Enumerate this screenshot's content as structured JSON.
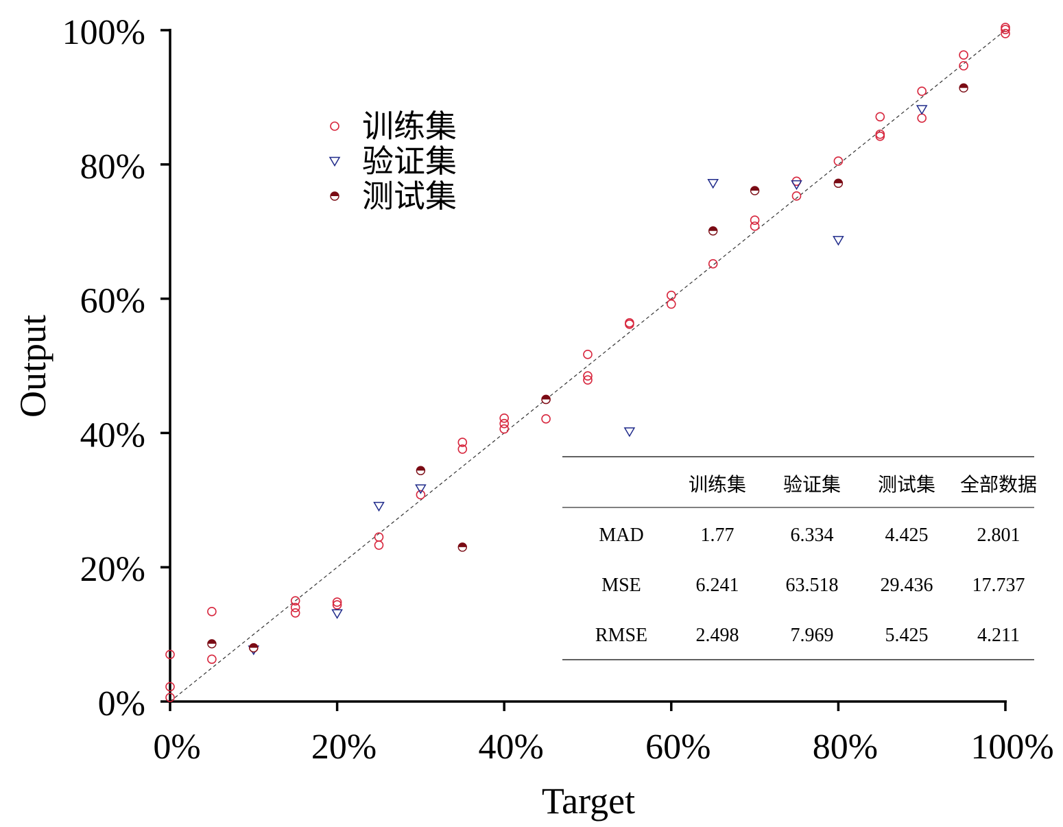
{
  "chart_data": {
    "type": "scatter",
    "xlabel": "Target",
    "ylabel": "Output",
    "xlim": [
      0,
      100
    ],
    "ylim": [
      0,
      100
    ],
    "x_ticks": [
      "0%",
      "20%",
      "40%",
      "60%",
      "80%",
      "100%"
    ],
    "y_ticks": [
      "0%",
      "20%",
      "40%",
      "60%",
      "80%",
      "100%"
    ],
    "tick_values": [
      0,
      20,
      40,
      60,
      80,
      100
    ],
    "reference_line": "y = x (dashed)",
    "legend_position": "top-left",
    "series": [
      {
        "name": "训练集",
        "marker": "open-circle",
        "color": "#d7263d",
        "points": [
          [
            0,
            7.0
          ],
          [
            0,
            2.2
          ],
          [
            0,
            0.6
          ],
          [
            5,
            13.4
          ],
          [
            5,
            6.3
          ],
          [
            10,
            8.0
          ],
          [
            15,
            15.0
          ],
          [
            15,
            14.0
          ],
          [
            15,
            13.2
          ],
          [
            20,
            14.8
          ],
          [
            20,
            14.4
          ],
          [
            25,
            24.5
          ],
          [
            25,
            23.3
          ],
          [
            30,
            30.8
          ],
          [
            35,
            38.6
          ],
          [
            35,
            37.6
          ],
          [
            40,
            42.2
          ],
          [
            40,
            41.4
          ],
          [
            40,
            40.6
          ],
          [
            45,
            45.0
          ],
          [
            45,
            42.1
          ],
          [
            50,
            51.7
          ],
          [
            50,
            48.5
          ],
          [
            50,
            47.9
          ],
          [
            55,
            56.4
          ],
          [
            55,
            56.2
          ],
          [
            60,
            60.5
          ],
          [
            60,
            59.2
          ],
          [
            65,
            65.2
          ],
          [
            70,
            71.7
          ],
          [
            70,
            70.8
          ],
          [
            75,
            77.5
          ],
          [
            75,
            75.3
          ],
          [
            80,
            80.5
          ],
          [
            85,
            87.1
          ],
          [
            85,
            84.5
          ],
          [
            85,
            84.2
          ],
          [
            90,
            90.9
          ],
          [
            90,
            86.9
          ],
          [
            95,
            96.3
          ],
          [
            95,
            94.7
          ],
          [
            100,
            100.4
          ],
          [
            100,
            100.1
          ],
          [
            100,
            99.5
          ]
        ]
      },
      {
        "name": "验证集",
        "marker": "open-triangle-down",
        "color": "#1f2a8a",
        "points": [
          [
            10,
            7.7
          ],
          [
            20,
            13.1
          ],
          [
            25,
            29.1
          ],
          [
            30,
            31.7
          ],
          [
            55,
            40.2
          ],
          [
            65,
            77.2
          ],
          [
            75,
            77.0
          ],
          [
            80,
            68.7
          ],
          [
            90,
            88.2
          ]
        ]
      },
      {
        "name": "测试集",
        "marker": "half-filled-circle",
        "color": "#7a0b14",
        "points": [
          [
            5,
            8.6
          ],
          [
            10,
            8.0
          ],
          [
            30,
            34.4
          ],
          [
            35,
            23.0
          ],
          [
            45,
            45.0
          ],
          [
            65,
            70.1
          ],
          [
            70,
            76.1
          ],
          [
            80,
            77.2
          ],
          [
            95,
            91.4
          ]
        ]
      }
    ],
    "metrics_table": {
      "columns": [
        "",
        "训练集",
        "验证集",
        "测试集",
        "全部数据"
      ],
      "rows": [
        [
          "MAD",
          "1.77",
          "6.334",
          "4.425",
          "2.801"
        ],
        [
          "MSE",
          "6.241",
          "63.518",
          "29.436",
          "17.737"
        ],
        [
          "RMSE",
          "2.498",
          "7.969",
          "5.425",
          "4.211"
        ]
      ]
    }
  }
}
